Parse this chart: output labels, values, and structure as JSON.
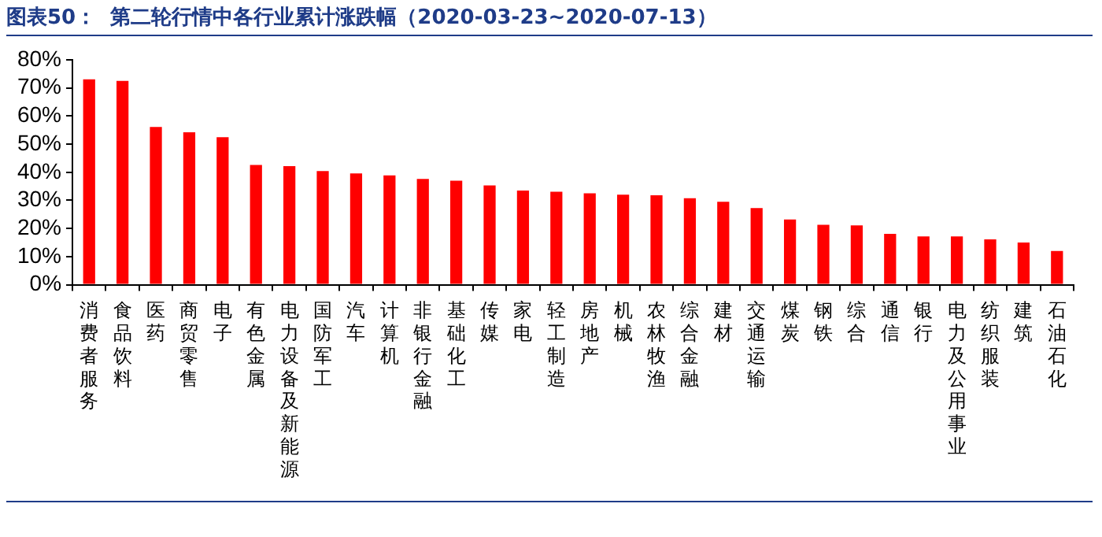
{
  "chart_data": {
    "type": "bar",
    "title": "图表50：  第二轮行情中各行业累计涨跌幅（2020-03-23~2020-07-13）",
    "categories": [
      "消费者服务",
      "食品饮料",
      "医药",
      "商贸零售",
      "电子",
      "有色金属",
      "电力设备及新能源",
      "国防军工",
      "汽车",
      "计算机",
      "非银行金融",
      "基础化工",
      "传媒",
      "家电",
      "轻工制造",
      "房地产",
      "机械",
      "农林牧渔",
      "综合金融",
      "建材",
      "交通运输",
      "煤炭",
      "钢铁",
      "综合",
      "通信",
      "银行",
      "电力及公用事业",
      "纺织服装",
      "建筑",
      "石油石化"
    ],
    "values": [
      73.1,
      72.5,
      56.1,
      54.2,
      52.5,
      42.6,
      42.2,
      40.4,
      39.6,
      38.9,
      37.6,
      37.0,
      35.3,
      33.5,
      33.1,
      32.5,
      32.0,
      31.8,
      30.8,
      29.5,
      27.3,
      23.2,
      21.3,
      21.1,
      18.1,
      17.2,
      17.2,
      16.1,
      15.0,
      12.0
    ],
    "color": "#ff0000",
    "ylim": [
      0,
      80
    ],
    "yticks": [
      {
        "value": 0,
        "label": "0%"
      },
      {
        "value": 10,
        "label": "10%"
      },
      {
        "value": 20,
        "label": "20%"
      },
      {
        "value": 30,
        "label": "30%"
      },
      {
        "value": 40,
        "label": "40%"
      },
      {
        "value": 50,
        "label": "50%"
      },
      {
        "value": 60,
        "label": "60%"
      },
      {
        "value": 70,
        "label": "70%"
      },
      {
        "value": 80,
        "label": "80%"
      }
    ],
    "grid": false,
    "legend": false
  }
}
